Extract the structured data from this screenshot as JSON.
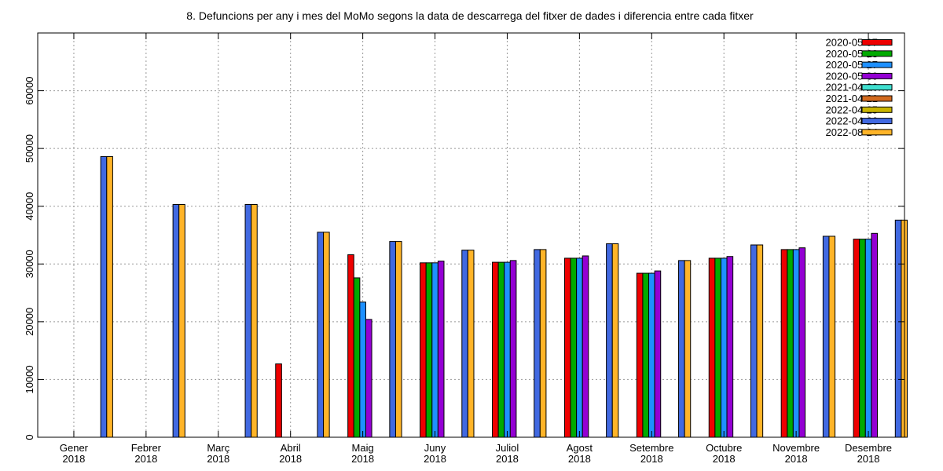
{
  "chart_data": {
    "type": "bar",
    "title": "8. Defuncions per any i mes del MoMo segons la data de descarrega del fitxer de dades i diferencia entre cada fitxer",
    "xlabel": "",
    "ylabel": "",
    "ylim": [
      0,
      70000
    ],
    "yticks": [
      0,
      10000,
      20000,
      30000,
      40000,
      50000,
      60000
    ],
    "grid": true,
    "legend_position": "top-right",
    "categories": [
      {
        "month": "Gener",
        "year": "2018"
      },
      {
        "month": "Febrer",
        "year": "2018"
      },
      {
        "month": "Març",
        "year": "2018"
      },
      {
        "month": "Abril",
        "year": "2018"
      },
      {
        "month": "Maig",
        "year": "2018"
      },
      {
        "month": "Juny",
        "year": "2018"
      },
      {
        "month": "Juliol",
        "year": "2018"
      },
      {
        "month": "Agost",
        "year": "2018"
      },
      {
        "month": "Setembre",
        "year": "2018"
      },
      {
        "month": "Octubre",
        "year": "2018"
      },
      {
        "month": "Novembre",
        "year": "2018"
      },
      {
        "month": "Desembre",
        "year": "2018"
      }
    ],
    "series": [
      {
        "name": "2020-05-07",
        "color": "#ee0000",
        "values": [
          null,
          null,
          null,
          12700,
          31600,
          30200,
          30300,
          31000,
          28400,
          31000,
          32500,
          34300
        ]
      },
      {
        "name": "2020-05-23",
        "color": "#00aa00",
        "values": [
          null,
          null,
          null,
          null,
          27600,
          30200,
          30300,
          31000,
          28400,
          31000,
          32500,
          34300
        ]
      },
      {
        "name": "2020-05-27",
        "color": "#1e90ff",
        "values": [
          null,
          null,
          null,
          null,
          23400,
          30200,
          30300,
          31000,
          28400,
          31000,
          32500,
          34300
        ]
      },
      {
        "name": "2020-05-30",
        "color": "#9400d3",
        "values": [
          null,
          null,
          null,
          null,
          20400,
          30500,
          30600,
          31400,
          28800,
          31300,
          32800,
          35300
        ]
      },
      {
        "name": "2021-04-20",
        "color": "#40e0d0",
        "values": [
          null,
          null,
          null,
          null,
          null,
          null,
          null,
          null,
          null,
          null,
          null,
          null
        ]
      },
      {
        "name": "2021-04-21",
        "color": "#d2691e",
        "values": [
          null,
          null,
          null,
          null,
          null,
          null,
          null,
          null,
          null,
          null,
          null,
          null
        ]
      },
      {
        "name": "2022-04-25",
        "color": "#c8b400",
        "values": [
          null,
          null,
          null,
          null,
          null,
          null,
          null,
          null,
          null,
          null,
          null,
          null
        ]
      },
      {
        "name": "2022-04-26",
        "color": "#4169e1",
        "values": [
          48600,
          40300,
          40300,
          35500,
          33900,
          32400,
          32500,
          33500,
          30600,
          33300,
          34800,
          37600
        ]
      },
      {
        "name": "2022-08-24",
        "color": "#ffb428",
        "values": [
          48600,
          40300,
          40300,
          35500,
          33900,
          32400,
          32500,
          33500,
          30600,
          33300,
          34800,
          37600
        ]
      }
    ]
  }
}
